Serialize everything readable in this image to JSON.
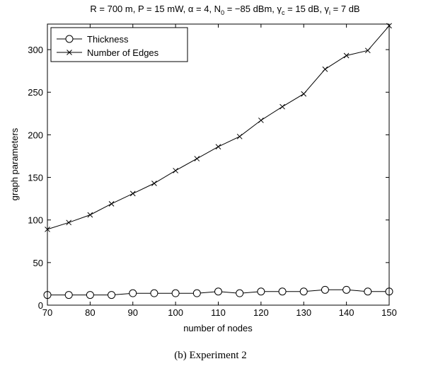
{
  "chart_data": {
    "type": "line",
    "title": {
      "pre": "R = 700 m, P = 15 mW, ",
      "alpha_sym": "α",
      "alpha_val": " = 4, N",
      "n0_sub": "0",
      "n0_val": " = −85 dBm, ",
      "gamma_c_sym": "γ",
      "gamma_c_sub": "c",
      "gamma_c_val": " = 15 dB, ",
      "gamma_i_sym": "γ",
      "gamma_i_sub": "i",
      "gamma_i_val": " = 7 dB"
    },
    "xlabel": "number of nodes",
    "ylabel": "graph parameters",
    "xlim": [
      70,
      150
    ],
    "ylim": [
      0,
      330
    ],
    "xticks": [
      70,
      80,
      90,
      100,
      110,
      120,
      130,
      140,
      150
    ],
    "yticks": [
      0,
      50,
      100,
      150,
      200,
      250,
      300
    ],
    "grid": false,
    "legend_position": "top-left",
    "x": [
      70,
      75,
      80,
      85,
      90,
      95,
      100,
      105,
      110,
      115,
      120,
      125,
      130,
      135,
      140,
      145,
      150
    ],
    "series": [
      {
        "name": "Thickness",
        "marker": "circle",
        "color": "#000000",
        "values": [
          12,
          12,
          12,
          12,
          14,
          14,
          14,
          14,
          16,
          14,
          16,
          16,
          16,
          18,
          18,
          16,
          16
        ]
      },
      {
        "name": "Number of Edges",
        "marker": "x",
        "color": "#000000",
        "values": [
          89,
          97,
          106,
          119,
          131,
          143,
          158,
          172,
          186,
          198,
          217,
          233,
          248,
          277,
          293,
          299,
          328
        ]
      }
    ]
  },
  "caption": "(b)  Experiment 2"
}
